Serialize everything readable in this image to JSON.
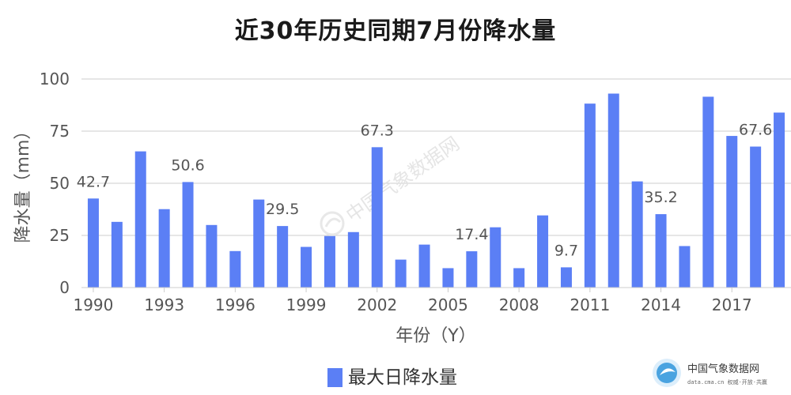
{
  "chart_data": {
    "type": "bar",
    "title": "近30年历史同期7月份降水量",
    "xlabel": "年份（Y）",
    "ylabel": "降水量（mm）",
    "ylim": [
      0,
      100
    ],
    "yticks": [
      0,
      25,
      50,
      75,
      100
    ],
    "grid": true,
    "legend_position": "bottom",
    "categories": [
      "1990",
      "1991",
      "1992",
      "1993",
      "1994",
      "1995",
      "1996",
      "1997",
      "1998",
      "1999",
      "2000",
      "2001",
      "2002",
      "2003",
      "2004",
      "2005",
      "2006",
      "2007",
      "2008",
      "2009",
      "2010",
      "2011",
      "2012",
      "2013",
      "2014",
      "2015",
      "2016",
      "2017",
      "2018",
      "2019"
    ],
    "x_tick_labels": [
      "1990",
      "1993",
      "1996",
      "1999",
      "2002",
      "2005",
      "2008",
      "2011",
      "2014",
      "2017"
    ],
    "series": [
      {
        "name": "最大日降水量",
        "color": "#5b7ff5",
        "values": [
          42.7,
          31.5,
          65.3,
          37.6,
          50.6,
          30.0,
          17.5,
          42.2,
          29.5,
          19.5,
          24.7,
          26.6,
          67.3,
          13.4,
          20.6,
          9.3,
          17.4,
          28.9,
          9.3,
          34.6,
          9.7,
          88.2,
          93.0,
          50.9,
          35.2,
          19.9,
          91.5,
          72.7,
          67.6,
          83.9
        ]
      }
    ],
    "data_labels": [
      {
        "index": 0,
        "text": "42.7"
      },
      {
        "index": 4,
        "text": "50.6"
      },
      {
        "index": 8,
        "text": "29.5"
      },
      {
        "index": 12,
        "text": "67.3"
      },
      {
        "index": 16,
        "text": "17.4"
      },
      {
        "index": 20,
        "text": "9.7"
      },
      {
        "index": 24,
        "text": "35.2"
      },
      {
        "index": 28,
        "text": "67.6"
      }
    ]
  },
  "watermark": {
    "text": "中国气象数据网"
  },
  "branding": {
    "name": "中国气象数据网",
    "sub": "data.cma.cn 权威·开放·共赢"
  },
  "colors": {
    "bar": "#5b7ff5",
    "grid": "#cccccc",
    "brand_icon": "#4aa3e0"
  },
  "icons": {
    "watermark": "cma-logo-icon",
    "brand": "cma-logo-icon"
  }
}
